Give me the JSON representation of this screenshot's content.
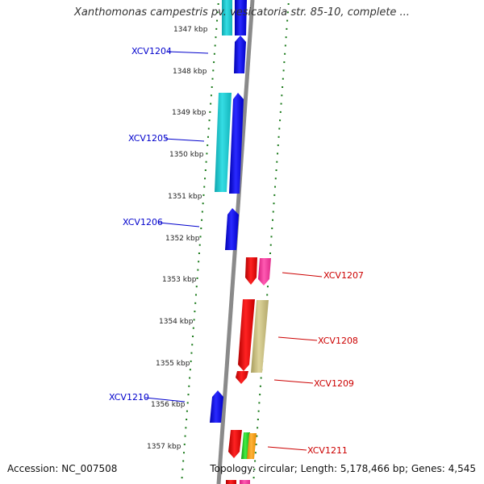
{
  "title": "Xanthomonas campestris pv. vesicatoria str. 85-10, complete ...",
  "footer": {
    "accession": "Accession: NC_007508",
    "summary": "Topology: circular; Length: 5,178,466 bp; Genes: 4,545"
  },
  "colors": {
    "ruler_ticks": "#1a7a1a",
    "backbone": "#888888",
    "forward_label": "#0000cc",
    "reverse_label": "#cc0000",
    "forward_gene": "#0000ff",
    "forward_gene_alt": "#22c8d0",
    "reverse_gene": "#ff0000",
    "reverse_gene_alt": "#ff3fa0",
    "reverse_gene_tan": "#c8bf80",
    "reverse_gene_green": "#22cc22",
    "reverse_gene_orange": "#ff9900"
  },
  "kbp_labels": [
    "1347 kbp",
    "1348 kbp",
    "1349 kbp",
    "1350 kbp",
    "1351 kbp",
    "1352 kbp",
    "1353 kbp",
    "1354 kbp",
    "1355 kbp",
    "1356 kbp",
    "1357 kbp"
  ],
  "forward_gene_labels": [
    "XCV1204",
    "XCV1205",
    "XCV1206",
    "XCV1210"
  ],
  "reverse_gene_labels": [
    "XCV1207",
    "XCV1208",
    "XCV1209",
    "XCV1211"
  ]
}
